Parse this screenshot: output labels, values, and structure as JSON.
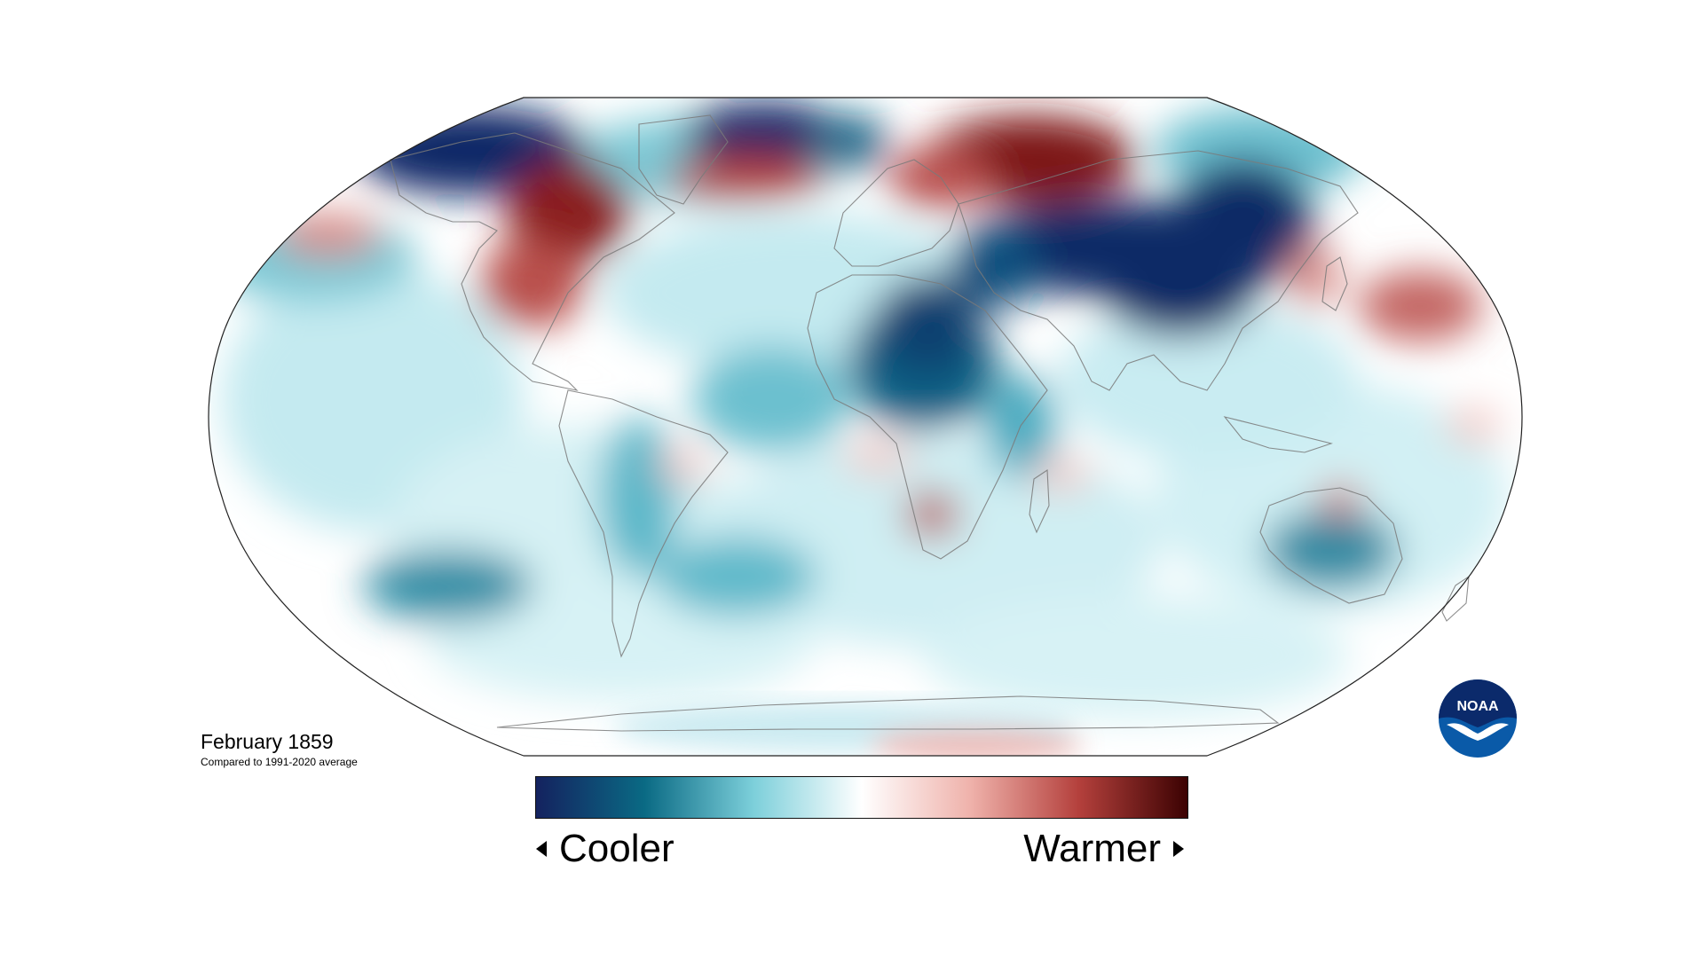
{
  "map": {
    "title": "February 1859",
    "subtitle": "Compared to 1991-2020 average",
    "projection": "Robinson",
    "anomaly_colors": {
      "strong_cool": "#0f2466",
      "cool": "#0f6f8a",
      "mild_cool": "#86d3de",
      "neutral": "#ffffff",
      "mild_warm": "#f3b5b0",
      "warm": "#c0504b",
      "strong_warm": "#5c0707"
    }
  },
  "legend": {
    "cooler_label": "Cooler",
    "warmer_label": "Warmer",
    "gradient": [
      "#14225f",
      "#0a6a84",
      "#7ccfda",
      "#ffffff",
      "#efb2ab",
      "#b4403c",
      "#3c0202"
    ]
  },
  "logo": {
    "text": "NOAA",
    "colors": {
      "blue": "#0a5aa8",
      "dark_blue": "#0b2a6b",
      "white": "#ffffff"
    }
  }
}
